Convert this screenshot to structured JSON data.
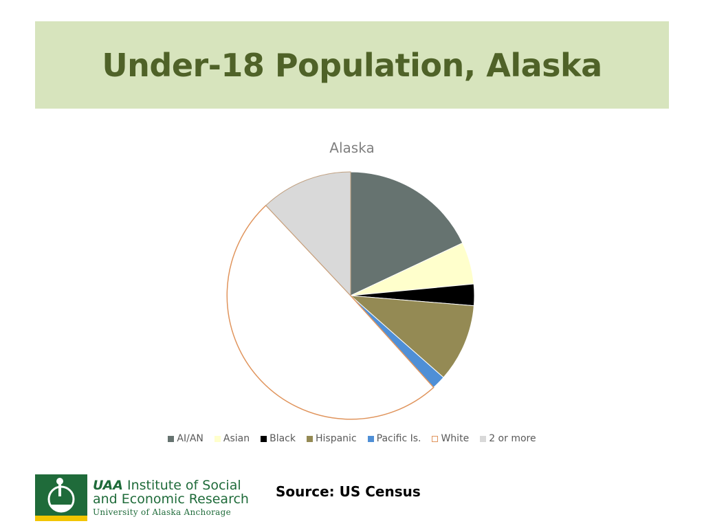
{
  "slide": {
    "title": "Under-18 Population, Alaska",
    "source": "Source:  US Census"
  },
  "logo": {
    "acronym": "UAA",
    "line1": "Institute of Social",
    "line2": "and Economic Research",
    "line3": "University of Alaska Anchorage",
    "icon": "uaa-seal-icon"
  },
  "colors": {
    "title_band": "#d7e4bd",
    "title_text": "#4f6228",
    "logo_green": "#1f6b3a"
  },
  "chart_data": {
    "type": "pie",
    "title": "Alaska",
    "legend_position": "bottom",
    "start_angle_deg": 0,
    "slices": [
      {
        "name": "AI/AN",
        "value": 18.0,
        "color": "#667370",
        "border": "#ffffff"
      },
      {
        "name": "Asian",
        "value": 5.5,
        "color": "#ffffcc",
        "border": "#ffffff"
      },
      {
        "name": "Black",
        "value": 2.8,
        "color": "#000000",
        "border": "#ffffff"
      },
      {
        "name": "Hispanic",
        "value": 10.2,
        "color": "#948a54",
        "border": "#ffffff"
      },
      {
        "name": "Pacific Is.",
        "value": 1.8,
        "color": "#4f8fd6",
        "border": "#ffffff"
      },
      {
        "name": "White",
        "value": 49.7,
        "color": "#ffffff",
        "border": "#e0945c"
      },
      {
        "name": "2 or more",
        "value": 12.0,
        "color": "#d9d9d9",
        "border": "#c0a080"
      }
    ]
  }
}
